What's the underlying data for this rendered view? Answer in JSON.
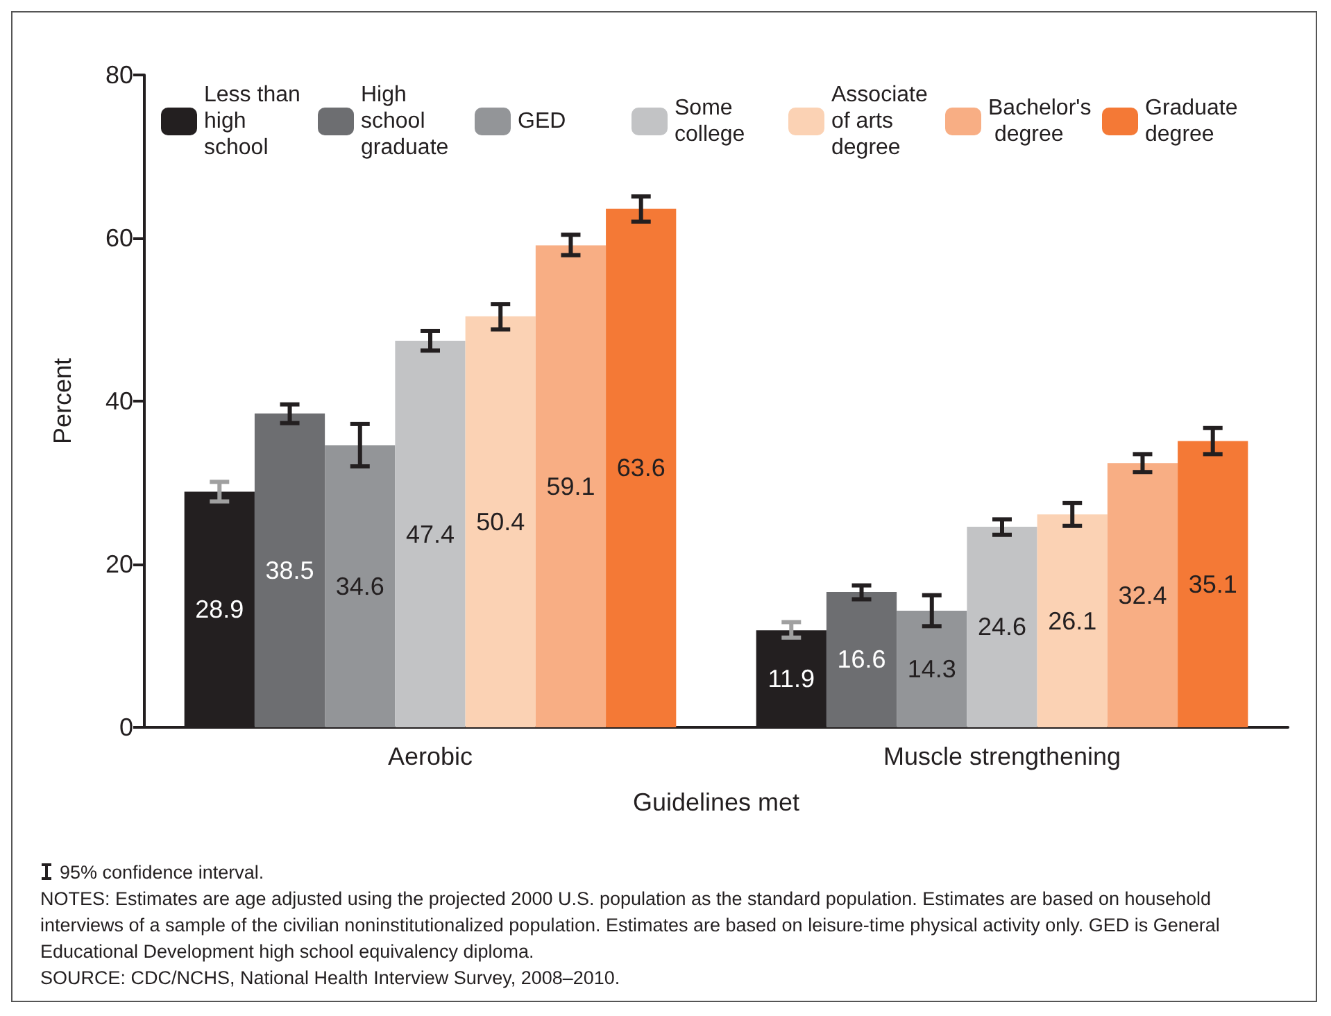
{
  "chart_data": {
    "type": "bar",
    "xlabel": "Guidelines met",
    "ylabel": "Percent",
    "categories": [
      "Aerobic",
      "Muscle strengthening"
    ],
    "series": [
      {
        "name": "Less than high school",
        "color": "#231f20",
        "values": [
          28.9,
          11.9
        ],
        "errors": [
          [
            27.7,
            30.1
          ],
          [
            11.0,
            12.9
          ]
        ]
      },
      {
        "name": "High school graduate",
        "color": "#6d6e71",
        "values": [
          38.5,
          16.6
        ],
        "errors": [
          [
            37.3,
            39.6
          ],
          [
            15.7,
            17.4
          ]
        ]
      },
      {
        "name": "GED",
        "color": "#939598",
        "values": [
          34.6,
          14.3
        ],
        "errors": [
          [
            32.0,
            37.2
          ],
          [
            12.4,
            16.2
          ]
        ]
      },
      {
        "name": "Some college",
        "color": "#c2c3c5",
        "values": [
          47.4,
          24.6
        ],
        "errors": [
          [
            46.2,
            48.6
          ],
          [
            23.6,
            25.5
          ]
        ]
      },
      {
        "name": "Associate of arts degree",
        "color": "#fbd2b4",
        "values": [
          50.4,
          26.1
        ],
        "errors": [
          [
            48.8,
            51.9
          ],
          [
            24.7,
            27.5
          ]
        ]
      },
      {
        "name": "Bachelor's degree",
        "color": "#f8ae84",
        "values": [
          59.1,
          32.4
        ],
        "errors": [
          [
            57.9,
            60.4
          ],
          [
            31.3,
            33.5
          ]
        ]
      },
      {
        "name": "Graduate degree",
        "color": "#f47936",
        "values": [
          63.6,
          35.1
        ],
        "errors": [
          [
            62.0,
            65.1
          ],
          [
            33.5,
            36.7
          ]
        ]
      }
    ],
    "ylim": [
      0,
      80
    ],
    "yticks": [
      0,
      20,
      40,
      60,
      80
    ],
    "grid": false,
    "legend": "top",
    "data_labels": true,
    "annotations": [
      "95% confidence interval.",
      "NOTES: Estimates are age adjusted using the projected 2000 U.S. population as the standard population. Estimates are based on household interviews of a sample of the civilian noninstitutionalized population. Estimates are based on leisure-time physical activity only. GED is General Educational Development high school equivalency diploma.",
      "SOURCE: CDC/NCHS, National Health Interview Survey, 2008–2010."
    ]
  }
}
